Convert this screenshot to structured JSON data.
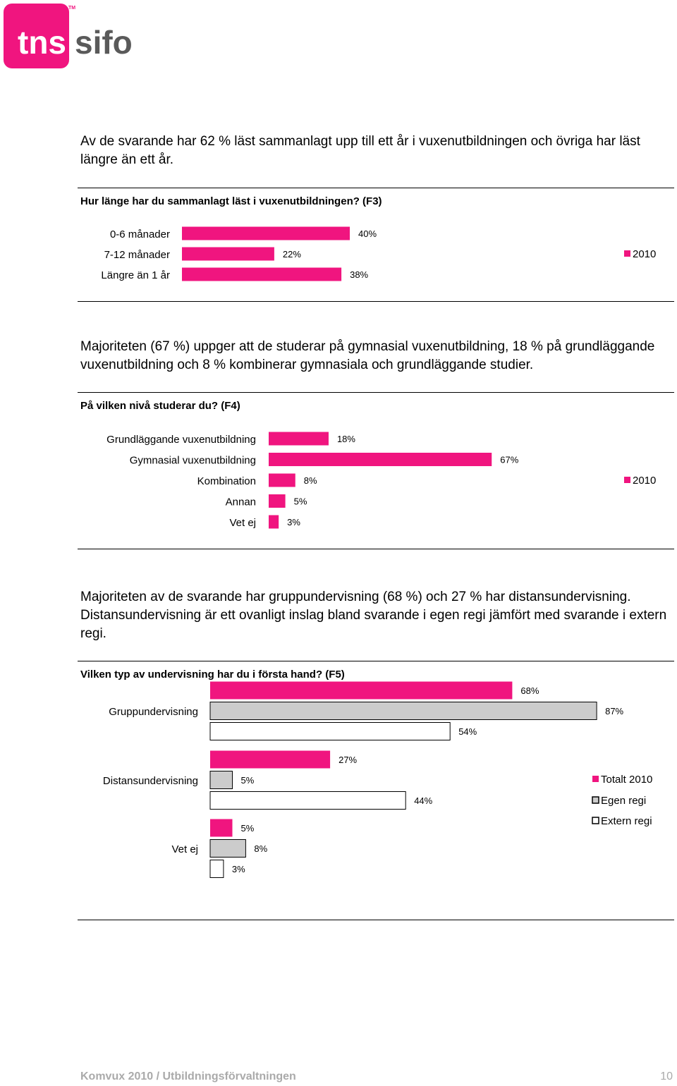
{
  "brand": {
    "tns": "tns",
    "sifo": "sifo",
    "tm": "TM"
  },
  "colors": {
    "accent": "#f0157f",
    "gray": "#cccccc",
    "white": "#ffffff",
    "stroke": "#000000",
    "footer": "#aaaaaa"
  },
  "sections": [
    {
      "text": "Av de svarande har 62 % läst sammanlagt upp till ett år i vuxenutbildningen och övriga har läst längre än ett år.",
      "question": "Hur länge har du sammanlagt läst i vuxenutbildningen? (F3)"
    },
    {
      "text": "Majoriteten (67 %) uppger att de studerar på gymnasial vuxenutbildning, 18 % på grundläggande vuxenutbildning och 8 % kombinerar gymnasiala och grundläggande studier.",
      "question": "På vilken nivå studerar du? (F4)"
    },
    {
      "text": "Majoriteten av de svarande har gruppundervisning (68 %) och 27 % har distansundervisning. Distansundervisning är ett ovanligt inslag bland svarande i egen regi jämfört med svarande i extern regi.",
      "question": "Vilken typ av undervisning har du i första hand? (F5)"
    }
  ],
  "chart_data": [
    {
      "type": "bar",
      "orientation": "horizontal",
      "categories": [
        "0-6 månader",
        "7-12 månader",
        "Längre än 1 år"
      ],
      "series": [
        {
          "name": "2010",
          "values": [
            40,
            22,
            38
          ],
          "labels": [
            "40%",
            "22%",
            "38%"
          ]
        }
      ],
      "value_unit": "%",
      "legend_position": "right",
      "grid": false
    },
    {
      "type": "bar",
      "orientation": "horizontal",
      "categories": [
        "Grundläggande vuxenutbildning",
        "Gymnasial vuxenutbildning",
        "Kombination",
        "Annan",
        "Vet ej"
      ],
      "series": [
        {
          "name": "2010",
          "values": [
            18,
            67,
            8,
            5,
            3
          ],
          "labels": [
            "18%",
            "67%",
            "8%",
            "5%",
            "3%"
          ]
        }
      ],
      "value_unit": "%",
      "legend_position": "right",
      "grid": false
    },
    {
      "type": "bar",
      "orientation": "horizontal",
      "categories": [
        "Gruppundervisning",
        "Distansundervisning",
        "Vet ej"
      ],
      "series": [
        {
          "name": "Totalt 2010",
          "values": [
            68,
            27,
            5
          ],
          "labels": [
            "68%",
            "27%",
            "5%"
          ]
        },
        {
          "name": "Egen regi",
          "values": [
            87,
            5,
            8
          ],
          "labels": [
            "87%",
            "5%",
            "8%"
          ]
        },
        {
          "name": "Extern regi",
          "values": [
            54,
            44,
            3
          ],
          "labels": [
            "54%",
            "44%",
            "3%"
          ]
        }
      ],
      "value_unit": "%",
      "legend_position": "right",
      "grid": false
    }
  ],
  "footer": {
    "title": "Komvux 2010 / Utbildningsförvaltningen",
    "page": "10"
  }
}
